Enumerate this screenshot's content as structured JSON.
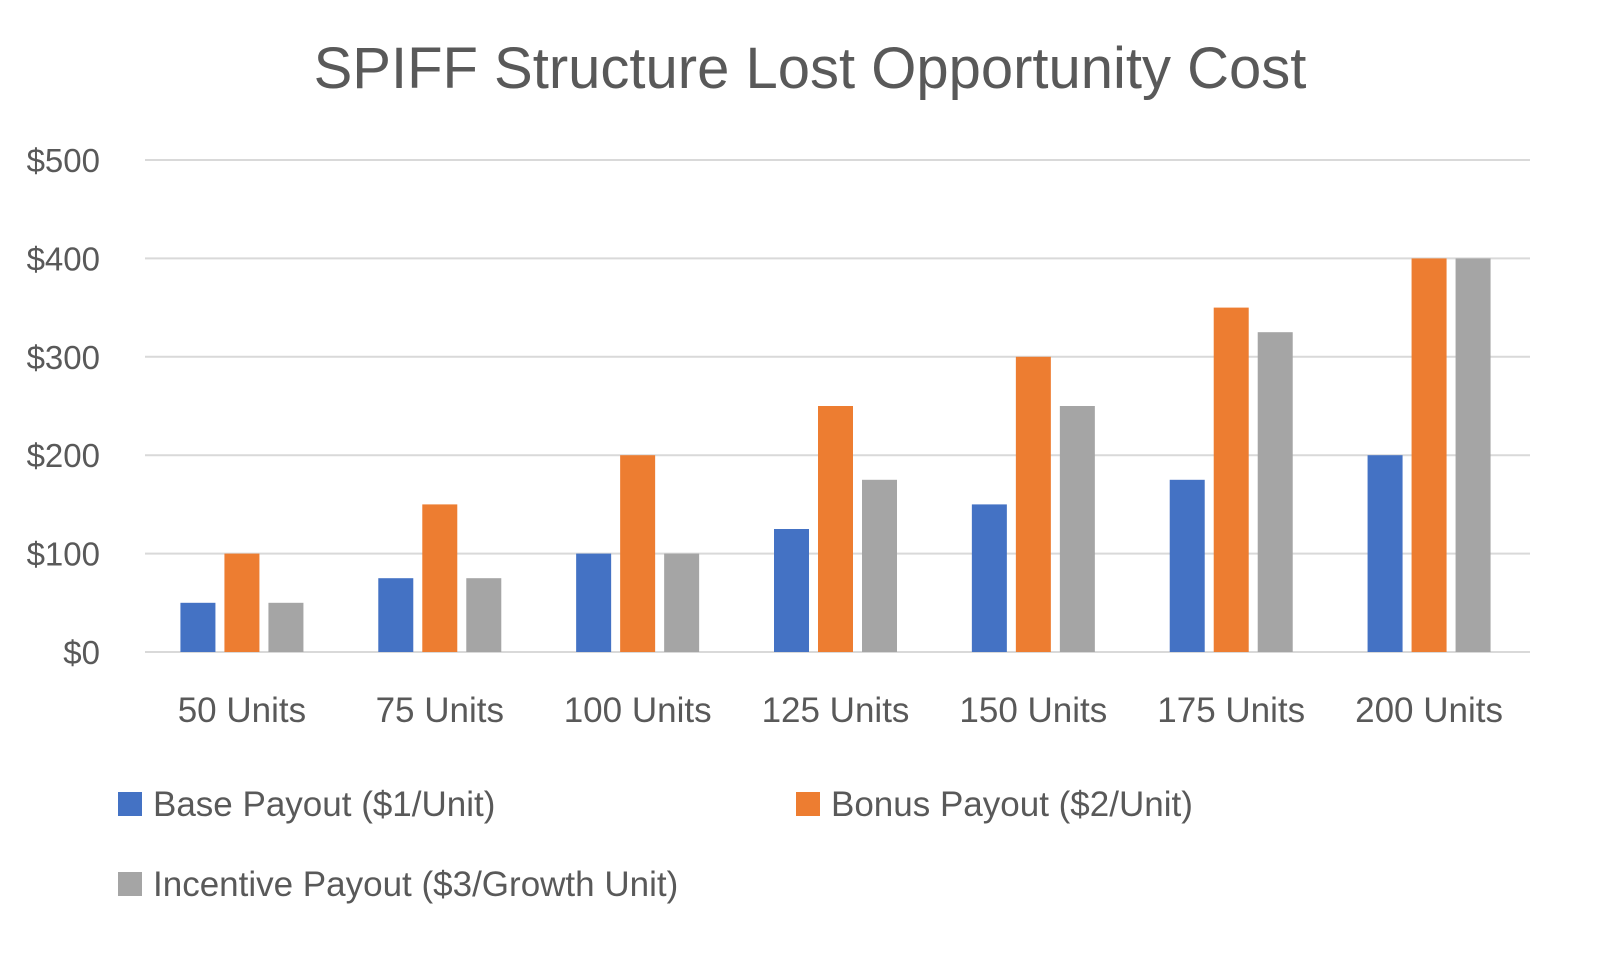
{
  "chart_data": {
    "type": "bar",
    "title": "SPIFF Structure Lost Opportunity Cost",
    "xlabel": "",
    "ylabel": "",
    "categories": [
      "50 Units",
      "75 Units",
      "100 Units",
      "125 Units",
      "150 Units",
      "175 Units",
      "200 Units"
    ],
    "series": [
      {
        "name": "Base Payout ($1/Unit)",
        "color": "#4472C4",
        "values": [
          50,
          75,
          100,
          125,
          150,
          175,
          200
        ]
      },
      {
        "name": "Bonus Payout ($2/Unit)",
        "color": "#ED7D31",
        "values": [
          100,
          150,
          200,
          250,
          300,
          350,
          400
        ]
      },
      {
        "name": "Incentive Payout ($3/Growth Unit)",
        "color": "#A5A5A5",
        "values": [
          50,
          75,
          100,
          175,
          250,
          325,
          400
        ]
      }
    ],
    "ylim": [
      0,
      500
    ],
    "yticks": [
      0,
      100,
      200,
      300,
      400,
      500
    ],
    "ytick_labels": [
      "$0",
      "$100",
      "$200",
      "$300",
      "$400",
      "$500"
    ],
    "grid": true,
    "legend_position": "bottom"
  }
}
